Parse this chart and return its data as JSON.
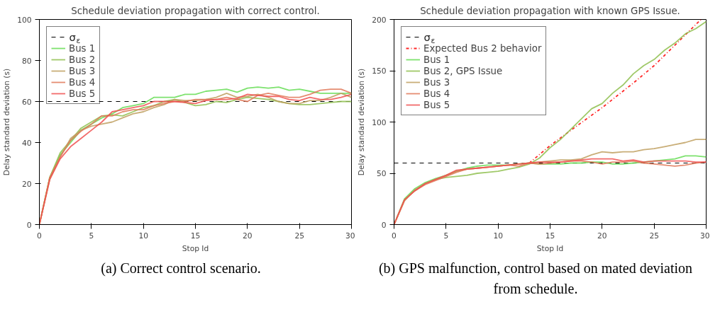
{
  "chart_data": [
    {
      "type": "line",
      "title": "Schedule deviation propagation with correct control.",
      "xlabel": "Stop Id",
      "ylabel": "Delay standard deviation (s)",
      "x": [
        0,
        1,
        2,
        3,
        4,
        5,
        6,
        7,
        8,
        9,
        10,
        11,
        12,
        13,
        14,
        15,
        16,
        17,
        18,
        19,
        20,
        21,
        22,
        23,
        24,
        25,
        26,
        27,
        28,
        29,
        30
      ],
      "xlim": [
        0,
        30
      ],
      "xticks": [
        0,
        5,
        10,
        15,
        20,
        25,
        30
      ],
      "ylim": [
        0,
        100
      ],
      "yticks": [
        0,
        20,
        40,
        60,
        80,
        100
      ],
      "grid": false,
      "legend": "top left",
      "line_style": "solid",
      "ref_lines": [
        {
          "axis": "y",
          "value": 60,
          "label": "σ$_{ε}$",
          "color": "#000000",
          "line_style": "dashed"
        }
      ],
      "series": [
        {
          "name": "Bus 1",
          "color": "#66dd55",
          "values": [
            0,
            23,
            34,
            40,
            46,
            49,
            52,
            54,
            57,
            58,
            59,
            62,
            62,
            62,
            63.5,
            63.5,
            65,
            65.5,
            66,
            64.5,
            66.5,
            67,
            66.5,
            67,
            65.5,
            66,
            65,
            64,
            64,
            64,
            64
          ]
        },
        {
          "name": "Bus 2",
          "color": "#8fbf4f",
          "values": [
            0,
            23,
            35,
            41,
            47,
            50,
            53,
            53.5,
            53,
            55,
            57,
            58,
            60,
            61,
            59.5,
            58,
            58.5,
            60,
            59.5,
            61,
            62,
            61.5,
            61,
            60,
            59,
            58.5,
            58.5,
            59,
            59.5,
            60,
            60
          ]
        },
        {
          "name": "Bus 3",
          "color": "#c0a060",
          "values": [
            0,
            22,
            33,
            42,
            46,
            48,
            49,
            50,
            52,
            54,
            55,
            57,
            58.5,
            61,
            60.5,
            60.5,
            61,
            62,
            64,
            62,
            62.5,
            63.5,
            62,
            60,
            59,
            59,
            60.5,
            60.5,
            62,
            64,
            62
          ]
        },
        {
          "name": "Bus 4",
          "color": "#e07858",
          "values": [
            0,
            23,
            33,
            41,
            45.5,
            49,
            53,
            53,
            55,
            56,
            56,
            58,
            59,
            60,
            60,
            61,
            61,
            61,
            62,
            61,
            60,
            63,
            64,
            63,
            62,
            62,
            63.5,
            65.5,
            66,
            66,
            64
          ]
        },
        {
          "name": "Bus 5",
          "color": "#f05050",
          "values": [
            0,
            22,
            32,
            38,
            42,
            46,
            50,
            55,
            56,
            57,
            58,
            60,
            60,
            60,
            59.5,
            59,
            60.5,
            61,
            61,
            61.5,
            63.5,
            63,
            62.5,
            62.5,
            61,
            60.5,
            62,
            61,
            61,
            62,
            63.5
          ]
        }
      ],
      "annotations": [
        "(a) Correct control scenario."
      ]
    },
    {
      "type": "line",
      "title": "Schedule deviation propagation with known GPS Issue.",
      "xlabel": "Stop Id",
      "ylabel": "Delay standard deviation (s)",
      "x": [
        0,
        1,
        2,
        3,
        4,
        5,
        6,
        7,
        8,
        9,
        10,
        11,
        12,
        13,
        14,
        15,
        16,
        17,
        18,
        19,
        20,
        21,
        22,
        23,
        24,
        25,
        26,
        27,
        28,
        29,
        30
      ],
      "xlim": [
        0,
        30
      ],
      "xticks": [
        0,
        5,
        10,
        15,
        20,
        25,
        30
      ],
      "ylim": [
        0,
        200
      ],
      "yticks": [
        0,
        50,
        100,
        150,
        200
      ],
      "grid": false,
      "legend": "top left",
      "line_style": "solid",
      "ref_lines": [
        {
          "axis": "y",
          "value": 60,
          "label": "σ$_{ε}$",
          "color": "#000000",
          "line_style": "dashed"
        }
      ],
      "series": [
        {
          "name": "Expected Bus 2 behavior",
          "color": "#ff0000",
          "line_style": "dotted",
          "x": [
            13,
            15,
            17,
            20,
            23,
            25,
            28,
            29.5
          ],
          "values": [
            60,
            77,
            92,
            114,
            138,
            155,
            185,
            200
          ]
        },
        {
          "name": "Bus 1",
          "color": "#66dd55",
          "values": [
            0,
            25,
            35,
            41,
            45,
            48,
            52,
            55,
            57,
            58,
            58,
            58,
            59,
            60,
            59,
            59,
            59,
            60,
            60,
            61,
            61,
            59,
            59,
            60,
            61,
            62,
            63,
            64,
            67,
            67,
            66
          ]
        },
        {
          "name": "Bus 2, GPS Issue",
          "color": "#8fbf4f",
          "values": [
            0,
            24,
            33,
            40,
            44,
            46,
            47,
            48,
            50,
            51,
            52,
            54,
            56,
            59,
            65,
            75,
            83,
            93,
            103,
            113,
            118,
            128,
            136,
            147,
            155,
            161,
            170,
            177,
            186,
            191,
            198
          ]
        },
        {
          "name": "Bus 3",
          "color": "#c0a060",
          "values": [
            0,
            23,
            34,
            40,
            44,
            48,
            52,
            54,
            55,
            56,
            57,
            58,
            59,
            60,
            61,
            62,
            63,
            63,
            64,
            68,
            71,
            70,
            71,
            71,
            73,
            74,
            76,
            78,
            80,
            83,
            83
          ]
        },
        {
          "name": "Bus 4",
          "color": "#e07858",
          "values": [
            0,
            24,
            33,
            39,
            43,
            47,
            51,
            54,
            55,
            56,
            57,
            58,
            57,
            60,
            59,
            60,
            61,
            62,
            62,
            61,
            59,
            61,
            61,
            62,
            60,
            59,
            58,
            57,
            58,
            60,
            61
          ]
        },
        {
          "name": "Bus 5",
          "color": "#f05050",
          "values": [
            0,
            24,
            33,
            40,
            44,
            48,
            53,
            54,
            55,
            56,
            57,
            58,
            59,
            60,
            61,
            61,
            61,
            62,
            63,
            64,
            64,
            64,
            62,
            63,
            61,
            62,
            62,
            62,
            62,
            61,
            61
          ]
        }
      ],
      "annotations": [
        "(b) GPS malfunction, control based on mated deviation from schedule."
      ]
    }
  ]
}
